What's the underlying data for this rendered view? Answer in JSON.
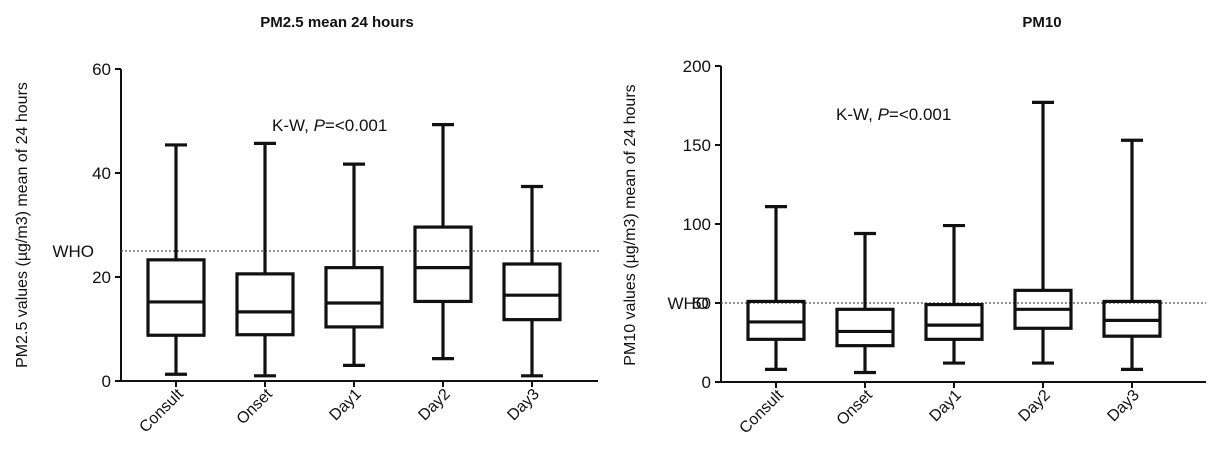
{
  "chart_data": [
    {
      "type": "box",
      "title": "PM2.5 mean 24 hours",
      "ylabel": "PM2.5 values (µg/m3) mean of 24 hours",
      "xlabel": "",
      "ylim": [
        0,
        60
      ],
      "yticks": [
        0,
        20,
        40,
        60
      ],
      "categories": [
        "Consult",
        "Onset",
        "Day1",
        "Day2",
        "Day3"
      ],
      "boxes": [
        {
          "min": 1.3,
          "q1": 8.8,
          "median": 15.2,
          "q3": 23.3,
          "max": 45.4
        },
        {
          "min": 1.0,
          "q1": 8.9,
          "median": 13.3,
          "q3": 20.6,
          "max": 45.7
        },
        {
          "min": 3.0,
          "q1": 10.4,
          "median": 15.0,
          "q3": 21.8,
          "max": 41.7
        },
        {
          "min": 4.3,
          "q1": 15.3,
          "median": 21.8,
          "q3": 29.6,
          "max": 49.3
        },
        {
          "min": 1.0,
          "q1": 11.8,
          "median": 16.5,
          "q3": 22.5,
          "max": 37.4
        }
      ],
      "reference_line": {
        "label": "WHO",
        "value": 25,
        "style": "dotted"
      },
      "annotation": {
        "prefix": "K-W, ",
        "italic": "P",
        "suffix": "=<0.001"
      },
      "grid": false
    },
    {
      "type": "box",
      "title": "PM10",
      "ylabel": "PM10 values (µg/m3) mean of 24 hours",
      "xlabel": "",
      "ylim": [
        0,
        200
      ],
      "yticks": [
        0,
        50,
        100,
        150,
        200
      ],
      "categories": [
        "Consult",
        "Onset",
        "Day1",
        "Day2",
        "Day3"
      ],
      "boxes": [
        {
          "min": 8,
          "q1": 27,
          "median": 38,
          "q3": 51,
          "max": 111
        },
        {
          "min": 6,
          "q1": 23,
          "median": 32,
          "q3": 46,
          "max": 94
        },
        {
          "min": 12,
          "q1": 27,
          "median": 36,
          "q3": 49,
          "max": 99
        },
        {
          "min": 12,
          "q1": 34,
          "median": 46,
          "q3": 58,
          "max": 177
        },
        {
          "min": 8,
          "q1": 29,
          "median": 39,
          "q3": 51,
          "max": 153
        }
      ],
      "reference_line": {
        "label": "WHO",
        "value": 50,
        "style": "dotted"
      },
      "annotation": {
        "prefix": "K-W, ",
        "italic": "P",
        "suffix": "=<0.001"
      },
      "grid": false
    }
  ]
}
